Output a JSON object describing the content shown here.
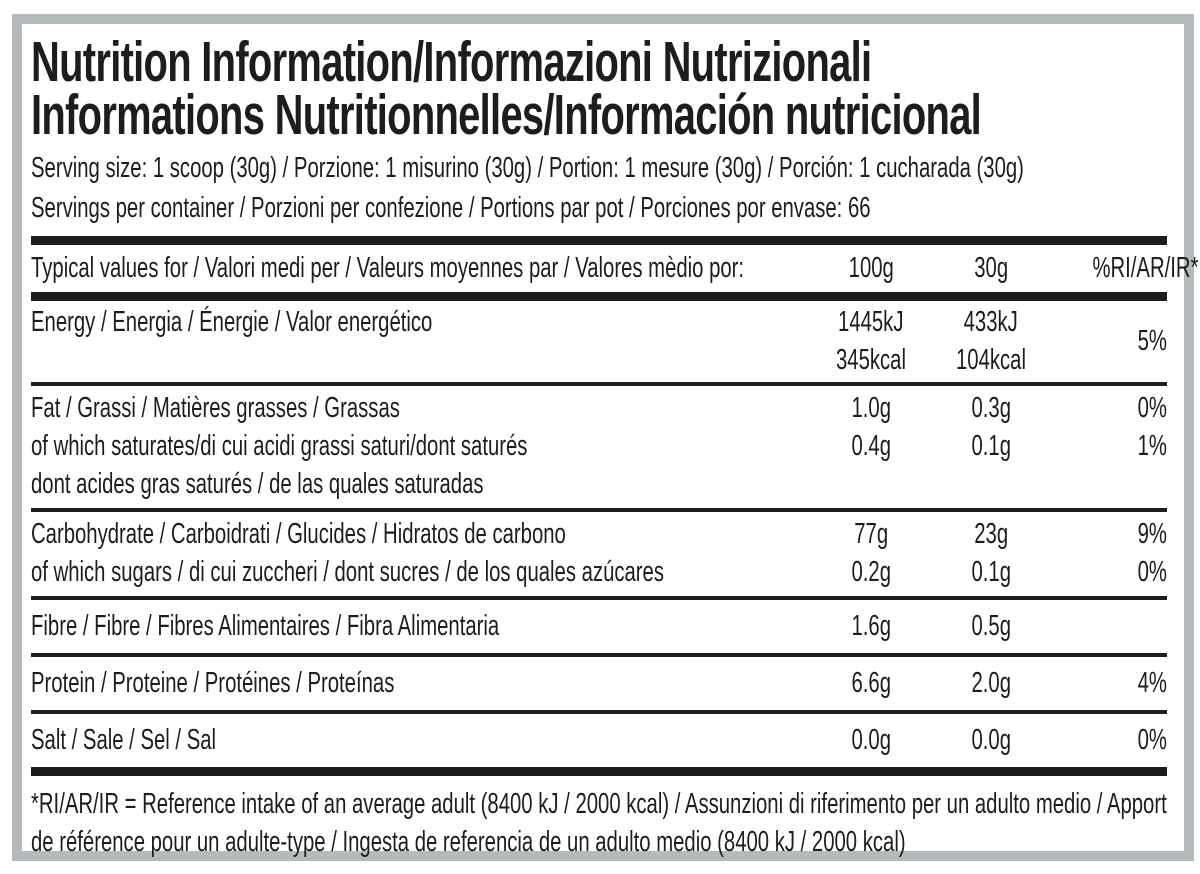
{
  "colors": {
    "text": "#1d1d1b",
    "frame": "#b5babd",
    "background": "#ffffff"
  },
  "label": {
    "title_line1": "Nutrition Information/Informazioni Nutrizionali",
    "title_line2": "Informations Nutritionnelles/Información nutricional",
    "serving_size": "Serving size: 1 scoop (30g) / Porzione: 1 misurino (30g) / Portion: 1 mesure (30g) / Porción: 1 cucharada (30g)",
    "servings_per_container": "Servings per container / Porzioni per confezione / Portions par pot / Porciones por envase: 66",
    "table": {
      "header": {
        "label": "Typical values for / Valori medi per / Valeurs moyennes par / Valores mèdio por:",
        "col_per_100g": "100g",
        "col_per_30g": "30g",
        "col_reference_intake": "%RI/AR/IR*"
      },
      "energy": {
        "label": "Energy / Energia / Énergie / Valor energético",
        "per100_kj": "1445kJ",
        "per100_kcal": "345kcal",
        "per30_kj": "433kJ",
        "per30_kcal": "104kcal",
        "ri": "5%"
      },
      "fat": {
        "line1": {
          "label": "Fat / Grassi / Matières grasses / Grassas",
          "per100": "1.0g",
          "per30": "0.3g",
          "ri": "0%"
        },
        "line2": {
          "label": "of which saturates/di cui acidi grassi saturi/dont saturés",
          "per100": "0.4g",
          "per30": "0.1g",
          "ri": "1%"
        },
        "line3": {
          "label": "dont acides gras saturés / de las quales saturadas"
        }
      },
      "carbohydrate": {
        "line1": {
          "label": "Carbohydrate / Carboidrati / Glucides / Hidratos de carbono",
          "per100": "77g",
          "per30": "23g",
          "ri": "9%"
        },
        "line2": {
          "label": "of which sugars / di cui zuccheri / dont sucres / de los quales azúcares",
          "per100": "0.2g",
          "per30": "0.1g",
          "ri": "0%"
        }
      },
      "fibre": {
        "label": "Fibre / Fibre / Fibres Alimentaires / Fibra Alimentaria",
        "per100": "1.6g",
        "per30": "0.5g",
        "ri": ""
      },
      "protein": {
        "label": "Protein / Proteine / Protéines / Proteínas",
        "per100": "6.6g",
        "per30": "2.0g",
        "ri": "4%"
      },
      "salt": {
        "label": "Salt / Sale / Sel / Sal",
        "per100": "0.0g",
        "per30": "0.0g",
        "ri": "0%"
      }
    },
    "footnote": "*RI/AR/IR = Reference intake of an average adult (8400 kJ / 2000 kcal)  / Assunzioni di riferimento per un adulto medio / Apport de référence pour un adulte-type / Ingesta de referencia de un adulto medio (8400 kJ / 2000 kcal)"
  }
}
